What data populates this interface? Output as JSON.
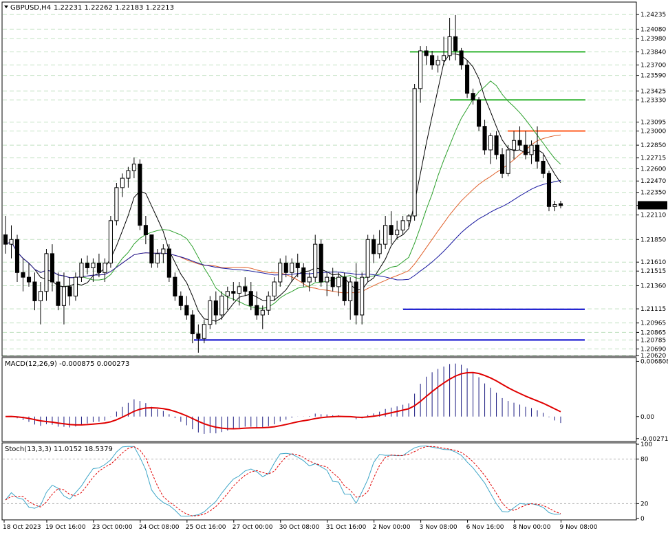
{
  "header": {
    "symbol": "GBPUSD,H4",
    "ohlc": "1.22231 1.22262 1.22183 1.22213",
    "macd": "MACD(12,26,9) -0.000875 0.000273",
    "stoch": "Stoch(13,3,3) 11.0152 18.5379"
  },
  "colors": {
    "background": "#ffffff",
    "grid": "#c0e0c0",
    "candle": "#000000",
    "sma_short": "#000000",
    "sma_mid": "#2ca02c",
    "sma_long_orange": "#e0602a",
    "sma_long_blue": "#1a1aa0",
    "support": "#0000cc",
    "resistance_green": "#2fb32f",
    "resistance_orange": "#ff5a1e",
    "macd_hist": "#1a1a80",
    "macd_signal": "#e00000",
    "stoch_main": "#3ea6c8",
    "stoch_signal": "#e00000",
    "price_box": "#000000"
  },
  "chart_data": [
    {
      "type": "candlestick",
      "symbol": "GBPUSD",
      "timeframe": "H4",
      "price_labels": [
        "1.24235",
        "1.24080",
        "1.23980",
        "1.23840",
        "1.23700",
        "1.23590",
        "1.23425",
        "1.23330",
        "1.23095",
        "1.23000",
        "1.22850",
        "1.22715",
        "1.22600",
        "1.22470",
        "1.22350",
        "1.22213",
        "1.22110",
        "1.21850",
        "1.21610",
        "1.21515",
        "1.21360",
        "1.21115",
        "1.20965",
        "1.20865",
        "1.20785",
        "1.20690",
        "1.20620"
      ],
      "highlighted_price": "1.22213",
      "x_tick_labels": [
        "18 Oct 2023",
        "19 Oct 16:00",
        "23 Oct 00:00",
        "24 Oct 08:00",
        "25 Oct 16:00",
        "27 Oct 00:00",
        "30 Oct 08:00",
        "31 Oct 16:00",
        "2 Nov 00:00",
        "3 Nov 08:00",
        "6 Nov 16:00",
        "8 Nov 00:00",
        "9 Nov 08:00"
      ],
      "ylim": [
        1.2062,
        1.2436
      ],
      "support_levels": [
        1.2111,
        1.20785
      ],
      "resistance_levels": [
        1.2384,
        1.2333,
        1.23
      ],
      "ohlc": [
        [
          1.219,
          1.221,
          1.217,
          1.218
        ],
        [
          1.218,
          1.22,
          1.2165,
          1.2185
        ],
        [
          1.2185,
          1.219,
          1.214,
          1.215
        ],
        [
          1.215,
          1.2165,
          1.213,
          1.2145
        ],
        [
          1.2145,
          1.216,
          1.2135,
          1.214
        ],
        [
          1.214,
          1.215,
          1.211,
          1.212
        ],
        [
          1.212,
          1.214,
          1.2095,
          1.213
        ],
        [
          1.213,
          1.2175,
          1.212,
          1.217
        ],
        [
          1.217,
          1.218,
          1.213,
          1.214
        ],
        [
          1.214,
          1.215,
          1.211,
          1.2115
        ],
        [
          1.2115,
          1.215,
          1.2095,
          1.2135
        ],
        [
          1.2135,
          1.2145,
          1.2115,
          1.2125
        ],
        [
          1.2125,
          1.215,
          1.212,
          1.2145
        ],
        [
          1.2145,
          1.2165,
          1.214,
          1.216
        ],
        [
          1.216,
          1.2168,
          1.2148,
          1.2155
        ],
        [
          1.2155,
          1.2165,
          1.214,
          1.216
        ],
        [
          1.216,
          1.217,
          1.2145,
          1.215
        ],
        [
          1.215,
          1.2165,
          1.214,
          1.216
        ],
        [
          1.216,
          1.221,
          1.2155,
          1.2205
        ],
        [
          1.2205,
          1.2245,
          1.22,
          1.224
        ],
        [
          1.224,
          1.2255,
          1.223,
          1.225
        ],
        [
          1.225,
          1.2262,
          1.224,
          1.2258
        ],
        [
          1.2258,
          1.2272,
          1.225,
          1.2265
        ],
        [
          1.2265,
          1.227,
          1.2195,
          1.22
        ],
        [
          1.22,
          1.221,
          1.218,
          1.219
        ],
        [
          1.219,
          1.219,
          1.2155,
          1.216
        ],
        [
          1.216,
          1.2175,
          1.2155,
          1.217
        ],
        [
          1.217,
          1.218,
          1.216,
          1.2175
        ],
        [
          1.2175,
          1.218,
          1.214,
          1.2145
        ],
        [
          1.2145,
          1.215,
          1.212,
          1.2125
        ],
        [
          1.2125,
          1.213,
          1.211,
          1.2115
        ],
        [
          1.2115,
          1.2125,
          1.21,
          1.2105
        ],
        [
          1.2105,
          1.211,
          1.2075,
          1.2085
        ],
        [
          1.2085,
          1.2095,
          1.2065,
          1.208
        ],
        [
          1.208,
          1.21,
          1.2075,
          1.2095
        ],
        [
          1.2095,
          1.2125,
          1.209,
          1.212
        ],
        [
          1.212,
          1.213,
          1.2095,
          1.2105
        ],
        [
          1.2105,
          1.213,
          1.21,
          1.2125
        ],
        [
          1.2125,
          1.2135,
          1.211,
          1.213
        ],
        [
          1.213,
          1.214,
          1.212,
          1.2128
        ],
        [
          1.2128,
          1.214,
          1.2115,
          1.2135
        ],
        [
          1.2135,
          1.2145,
          1.2125,
          1.213
        ],
        [
          1.213,
          1.214,
          1.211,
          1.2115
        ],
        [
          1.2115,
          1.213,
          1.21,
          1.2105
        ],
        [
          1.2105,
          1.2115,
          1.209,
          1.211
        ],
        [
          1.211,
          1.213,
          1.2105,
          1.2125
        ],
        [
          1.2125,
          1.2145,
          1.212,
          1.214
        ],
        [
          1.214,
          1.2165,
          1.2135,
          1.216
        ],
        [
          1.216,
          1.2168,
          1.2145,
          1.215
        ],
        [
          1.215,
          1.2165,
          1.214,
          1.216
        ],
        [
          1.216,
          1.217,
          1.2145,
          1.2155
        ],
        [
          1.2155,
          1.216,
          1.2135,
          1.214
        ],
        [
          1.214,
          1.215,
          1.213,
          1.2145
        ],
        [
          1.2145,
          1.219,
          1.214,
          1.218
        ],
        [
          1.218,
          1.2185,
          1.2135,
          1.214
        ],
        [
          1.214,
          1.215,
          1.2125,
          1.2145
        ],
        [
          1.2145,
          1.2155,
          1.213,
          1.2135
        ],
        [
          1.2135,
          1.215,
          1.2125,
          1.2145
        ],
        [
          1.2145,
          1.215,
          1.2115,
          1.212
        ],
        [
          1.212,
          1.2145,
          1.21,
          1.214
        ],
        [
          1.214,
          1.216,
          1.2095,
          1.2105
        ],
        [
          1.2105,
          1.215,
          1.2095,
          1.2145
        ],
        [
          1.2145,
          1.219,
          1.214,
          1.2185
        ],
        [
          1.2185,
          1.219,
          1.216,
          1.217
        ],
        [
          1.217,
          1.2195,
          1.2165,
          1.218
        ],
        [
          1.218,
          1.221,
          1.2175,
          1.22
        ],
        [
          1.22,
          1.2215,
          1.218,
          1.219
        ],
        [
          1.219,
          1.2205,
          1.2185,
          1.2195
        ],
        [
          1.2195,
          1.221,
          1.219,
          1.2205
        ],
        [
          1.2205,
          1.2212,
          1.2198,
          1.221
        ],
        [
          1.221,
          1.235,
          1.2205,
          1.2345
        ],
        [
          1.2345,
          1.239,
          1.233,
          1.2385
        ],
        [
          1.2385,
          1.239,
          1.237,
          1.238
        ],
        [
          1.238,
          1.2385,
          1.2365,
          1.237
        ],
        [
          1.237,
          1.238,
          1.2362,
          1.2375
        ],
        [
          1.2375,
          1.24,
          1.237,
          1.238
        ],
        [
          1.238,
          1.242,
          1.2375,
          1.24
        ],
        [
          1.24,
          1.2423,
          1.2375,
          1.2385
        ],
        [
          1.2385,
          1.2388,
          1.2365,
          1.237
        ],
        [
          1.237,
          1.2375,
          1.2335,
          1.234
        ],
        [
          1.234,
          1.2345,
          1.2328,
          1.2333
        ],
        [
          1.2333,
          1.2336,
          1.23,
          1.2305
        ],
        [
          1.2305,
          1.2312,
          1.2275,
          1.228
        ],
        [
          1.228,
          1.2298,
          1.2265,
          1.2295
        ],
        [
          1.2295,
          1.23,
          1.227,
          1.2275
        ],
        [
          1.2275,
          1.2282,
          1.225,
          1.2255
        ],
        [
          1.2255,
          1.2285,
          1.2252,
          1.228
        ],
        [
          1.228,
          1.23,
          1.227,
          1.229
        ],
        [
          1.229,
          1.2305,
          1.228,
          1.2285
        ],
        [
          1.2285,
          1.23,
          1.227,
          1.2275
        ],
        [
          1.2275,
          1.229,
          1.2265,
          1.2285
        ],
        [
          1.2285,
          1.2305,
          1.226,
          1.2268
        ],
        [
          1.2268,
          1.2275,
          1.225,
          1.2255
        ],
        [
          1.2255,
          1.2258,
          1.2215,
          1.222
        ],
        [
          1.222,
          1.2226,
          1.2215,
          1.2222
        ],
        [
          1.2223,
          1.2226,
          1.2218,
          1.2221
        ]
      ]
    },
    {
      "type": "bar",
      "name": "MACD(12,26,9)",
      "axis_labels": [
        "0.006808",
        "0.00",
        "-0.002711"
      ],
      "ylim": [
        -0.0029,
        0.0071
      ]
    },
    {
      "type": "line",
      "name": "Stoch(13,3,3)",
      "axis_labels": [
        "100",
        "80",
        "20",
        "0"
      ],
      "ylim": [
        0,
        100
      ]
    }
  ]
}
